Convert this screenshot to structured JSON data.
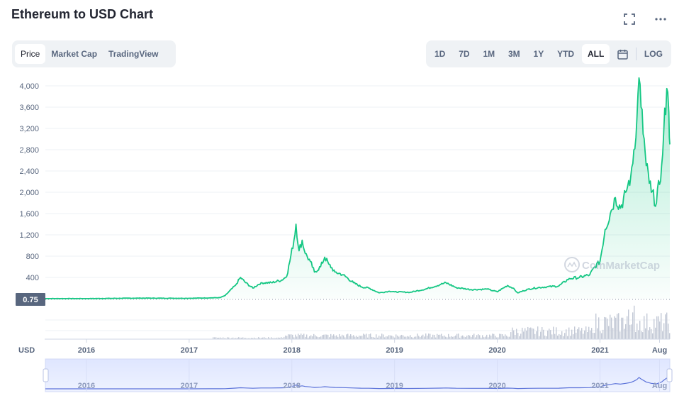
{
  "title": "Ethereum to USD Chart",
  "icons": {
    "fullscreen": "fullscreen-icon",
    "more": "more-dots-icon",
    "calendar": "calendar-icon"
  },
  "tabs": [
    "Price",
    "Market Cap",
    "TradingView"
  ],
  "ranges": [
    "1D",
    "7D",
    "1M",
    "3M",
    "1Y",
    "YTD",
    "ALL"
  ],
  "log_label": "LOG",
  "currency_label": "USD",
  "current_marker": "0.75",
  "watermark": "CoinMarketCap",
  "colors": {
    "line": "#16c784",
    "accent_text": "#222531",
    "muted": "#58667e",
    "nav_bg": "#eef2ff"
  },
  "chart_data": {
    "type": "line",
    "ylim": [
      0,
      4200
    ],
    "yticks": [
      400,
      800,
      1200,
      1600,
      2000,
      2400,
      2800,
      3200,
      3600,
      4000
    ],
    "ytick_labels": [
      "400",
      "800",
      "1,200",
      "1,600",
      "2,000",
      "2,400",
      "2,800",
      "3,200",
      "3,600",
      "4,000"
    ],
    "xticks": [
      "2016",
      "2017",
      "2018",
      "2019",
      "2020",
      "2021",
      "Aug"
    ],
    "xtick_dates": [
      2016.0,
      2017.0,
      2018.0,
      2019.0,
      2020.0,
      2021.0,
      2021.58
    ],
    "series": [
      {
        "x": [
          2015.6,
          2016.0,
          2016.5,
          2017.0,
          2017.2,
          2017.3,
          2017.35,
          2017.45,
          2017.5,
          2017.55,
          2017.62,
          2017.7,
          2017.8,
          2017.9,
          2017.95,
          2017.98,
          2018.02,
          2018.04,
          2018.07,
          2018.1,
          2018.13,
          2018.18,
          2018.22,
          2018.28,
          2018.32,
          2018.36,
          2018.42,
          2018.5,
          2018.6,
          2018.68,
          2018.75,
          2018.85,
          2018.95,
          2019.0,
          2019.15,
          2019.3,
          2019.45,
          2019.5,
          2019.6,
          2019.75,
          2019.9,
          2020.0,
          2020.1,
          2020.15,
          2020.2,
          2020.3,
          2020.4,
          2020.6,
          2020.7,
          2020.8,
          2020.9,
          2020.95,
          2021.0,
          2021.05,
          2021.1,
          2021.15,
          2021.2,
          2021.25,
          2021.3,
          2021.33,
          2021.36,
          2021.38,
          2021.4,
          2021.45,
          2021.5,
          2021.55,
          2021.6,
          2021.62,
          2021.65,
          2021.67,
          2021.68
        ],
        "y": [
          1,
          1,
          11,
          8,
          15,
          20,
          60,
          250,
          400,
          300,
          200,
          300,
          300,
          350,
          420,
          700,
          1100,
          1400,
          900,
          1100,
          850,
          700,
          500,
          600,
          780,
          650,
          500,
          450,
          300,
          220,
          200,
          110,
          140,
          130,
          120,
          180,
          270,
          300,
          210,
          170,
          180,
          130,
          250,
          200,
          110,
          180,
          210,
          240,
          380,
          400,
          450,
          600,
          700,
          1300,
          1600,
          1900,
          1700,
          2000,
          2300,
          2800,
          3400,
          4150,
          3600,
          2500,
          2000,
          1800,
          2500,
          3100,
          3950,
          3500,
          2900
        ]
      }
    ]
  }
}
